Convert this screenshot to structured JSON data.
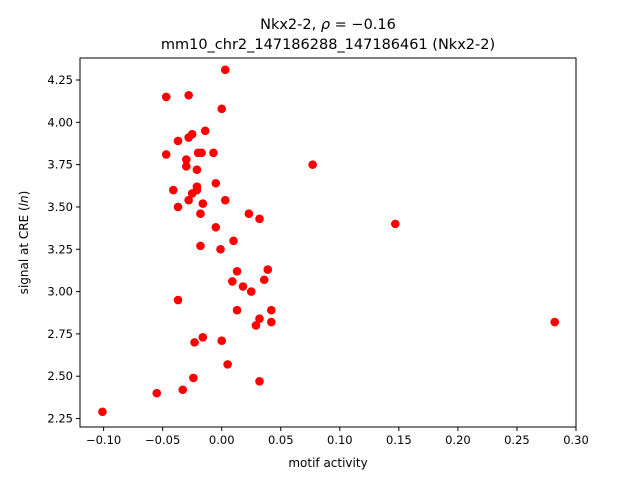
{
  "chart_data": {
    "type": "scatter",
    "title_line1_prefix": "Nkx2-2, ",
    "title_line1_rho": "ρ",
    "title_line1_suffix": " = −0.16",
    "title_line2": "mm10_chr2_147186288_147186461 (Nkx2-2)",
    "xlabel": "motif activity",
    "ylabel_prefix": "signal at CRE (",
    "ylabel_italic": "ln",
    "ylabel_suffix": ")",
    "xlim": [
      -0.12,
      0.3
    ],
    "ylim": [
      2.2,
      4.38
    ],
    "xticks": [
      -0.1,
      -0.05,
      0.0,
      0.05,
      0.1,
      0.15,
      0.2,
      0.25,
      0.3
    ],
    "xtick_labels": [
      "−0.10",
      "−0.05",
      "0.00",
      "0.05",
      "0.10",
      "0.15",
      "0.20",
      "0.25",
      "0.30"
    ],
    "yticks": [
      2.25,
      2.5,
      2.75,
      3.0,
      3.25,
      3.5,
      3.75,
      4.0,
      4.25
    ],
    "ytick_labels": [
      "2.25",
      "2.50",
      "2.75",
      "3.00",
      "3.25",
      "3.50",
      "3.75",
      "4.00",
      "4.25"
    ],
    "marker_color": "#ff0000",
    "grid": false,
    "points": [
      {
        "x": 0.003,
        "y": 4.31
      },
      {
        "x": -0.047,
        "y": 4.15
      },
      {
        "x": -0.028,
        "y": 4.16
      },
      {
        "x": 0.0,
        "y": 4.08
      },
      {
        "x": -0.014,
        "y": 3.95
      },
      {
        "x": -0.025,
        "y": 3.93
      },
      {
        "x": -0.028,
        "y": 3.91
      },
      {
        "x": -0.037,
        "y": 3.89
      },
      {
        "x": -0.047,
        "y": 3.81
      },
      {
        "x": -0.02,
        "y": 3.82
      },
      {
        "x": -0.017,
        "y": 3.82
      },
      {
        "x": -0.007,
        "y": 3.82
      },
      {
        "x": -0.03,
        "y": 3.78
      },
      {
        "x": -0.03,
        "y": 3.74
      },
      {
        "x": -0.021,
        "y": 3.72
      },
      {
        "x": 0.077,
        "y": 3.75
      },
      {
        "x": -0.005,
        "y": 3.64
      },
      {
        "x": -0.021,
        "y": 3.62
      },
      {
        "x": -0.041,
        "y": 3.6
      },
      {
        "x": -0.021,
        "y": 3.6
      },
      {
        "x": -0.025,
        "y": 3.58
      },
      {
        "x": -0.028,
        "y": 3.54
      },
      {
        "x": 0.003,
        "y": 3.54
      },
      {
        "x": -0.016,
        "y": 3.52
      },
      {
        "x": -0.037,
        "y": 3.5
      },
      {
        "x": -0.018,
        "y": 3.46
      },
      {
        "x": 0.023,
        "y": 3.46
      },
      {
        "x": 0.032,
        "y": 3.43
      },
      {
        "x": 0.147,
        "y": 3.4
      },
      {
        "x": -0.005,
        "y": 3.38
      },
      {
        "x": 0.01,
        "y": 3.3
      },
      {
        "x": -0.018,
        "y": 3.27
      },
      {
        "x": -0.001,
        "y": 3.25
      },
      {
        "x": 0.039,
        "y": 3.13
      },
      {
        "x": 0.013,
        "y": 3.12
      },
      {
        "x": 0.036,
        "y": 3.07
      },
      {
        "x": 0.009,
        "y": 3.06
      },
      {
        "x": 0.018,
        "y": 3.03
      },
      {
        "x": 0.025,
        "y": 3.0
      },
      {
        "x": -0.037,
        "y": 2.95
      },
      {
        "x": 0.013,
        "y": 2.89
      },
      {
        "x": 0.042,
        "y": 2.89
      },
      {
        "x": 0.032,
        "y": 2.84
      },
      {
        "x": 0.029,
        "y": 2.8
      },
      {
        "x": 0.042,
        "y": 2.82
      },
      {
        "x": 0.282,
        "y": 2.82
      },
      {
        "x": -0.016,
        "y": 2.73
      },
      {
        "x": -0.023,
        "y": 2.7
      },
      {
        "x": 0.0,
        "y": 2.71
      },
      {
        "x": 0.005,
        "y": 2.57
      },
      {
        "x": -0.024,
        "y": 2.49
      },
      {
        "x": 0.032,
        "y": 2.47
      },
      {
        "x": -0.033,
        "y": 2.42
      },
      {
        "x": -0.055,
        "y": 2.4
      },
      {
        "x": -0.101,
        "y": 2.29
      }
    ]
  }
}
